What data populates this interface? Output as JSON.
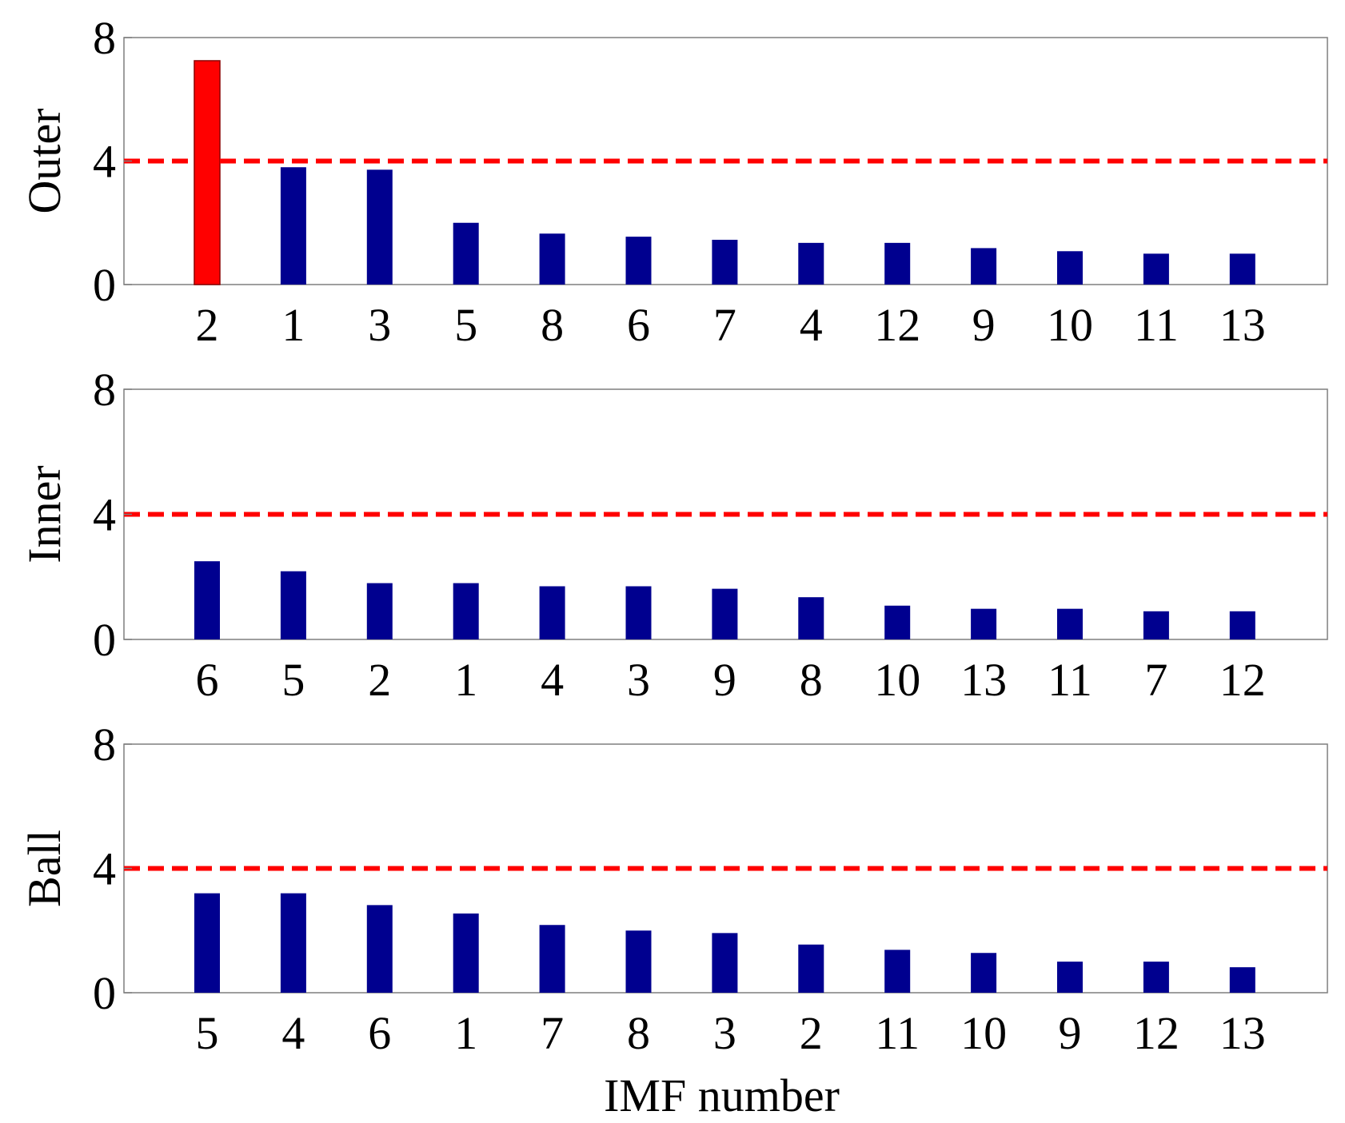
{
  "chart_data": [
    {
      "type": "bar",
      "ylabel": "Outer",
      "xlabel": "",
      "ylim": [
        0,
        8
      ],
      "yticks": [
        0,
        4,
        8
      ],
      "threshold": 4,
      "categories": [
        "2",
        "1",
        "3",
        "5",
        "8",
        "6",
        "7",
        "4",
        "12",
        "9",
        "10",
        "11",
        "13"
      ],
      "values": [
        7.25,
        3.8,
        3.72,
        2.0,
        1.65,
        1.55,
        1.45,
        1.35,
        1.35,
        1.18,
        1.08,
        1.0,
        1.0
      ],
      "highlight": [
        true,
        false,
        false,
        false,
        false,
        false,
        false,
        false,
        false,
        false,
        false,
        false,
        false
      ]
    },
    {
      "type": "bar",
      "ylabel": "Inner",
      "xlabel": "",
      "ylim": [
        0,
        8
      ],
      "yticks": [
        0,
        4,
        8
      ],
      "threshold": 4,
      "categories": [
        "6",
        "5",
        "2",
        "1",
        "4",
        "3",
        "9",
        "8",
        "10",
        "13",
        "11",
        "7",
        "12"
      ],
      "values": [
        2.5,
        2.18,
        1.8,
        1.8,
        1.7,
        1.7,
        1.62,
        1.35,
        1.08,
        0.98,
        0.98,
        0.9,
        0.9
      ],
      "highlight": [
        false,
        false,
        false,
        false,
        false,
        false,
        false,
        false,
        false,
        false,
        false,
        false,
        false
      ]
    },
    {
      "type": "bar",
      "ylabel": "Ball",
      "xlabel": "IMF number",
      "ylim": [
        0,
        8
      ],
      "yticks": [
        0,
        4,
        8
      ],
      "threshold": 4,
      "categories": [
        "5",
        "4",
        "6",
        "1",
        "7",
        "8",
        "3",
        "2",
        "11",
        "10",
        "9",
        "12",
        "13"
      ],
      "values": [
        3.2,
        3.2,
        2.82,
        2.55,
        2.18,
        2.0,
        1.92,
        1.55,
        1.38,
        1.28,
        1.0,
        1.0,
        0.82
      ],
      "highlight": [
        false,
        false,
        false,
        false,
        false,
        false,
        false,
        false,
        false,
        false,
        false,
        false,
        false
      ]
    }
  ],
  "colors": {
    "bar": "#00008f",
    "highlight": "#ff0000",
    "threshold": "#ff0000",
    "frame": "#7f7f7f"
  }
}
